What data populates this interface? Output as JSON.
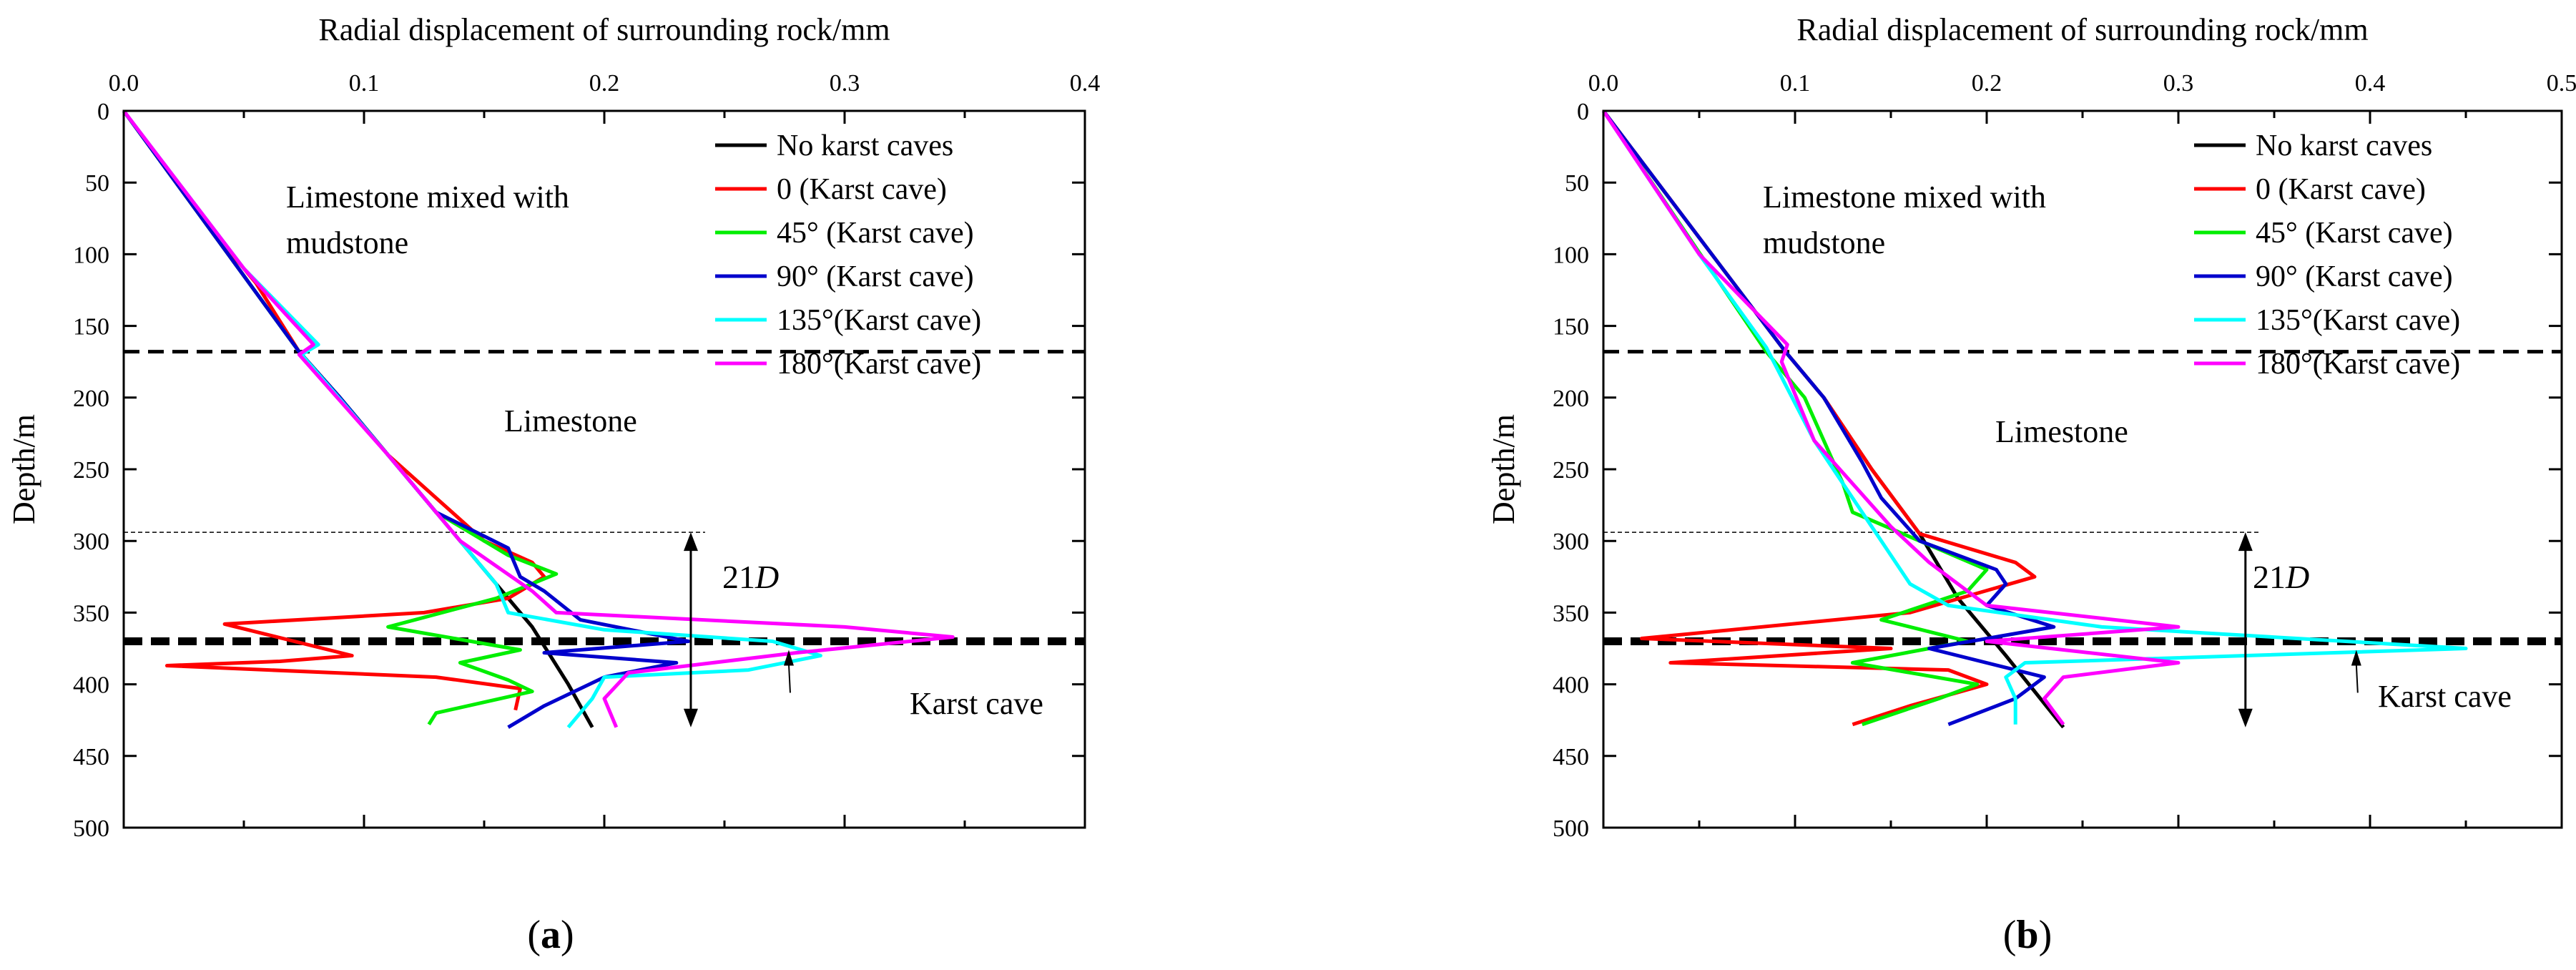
{
  "chart_data": [
    {
      "panel_label": "a",
      "type": "line",
      "xlabel": "Radial displacement of surrounding rock/mm",
      "ylabel": "Depth/m",
      "xlim": [
        0,
        0.4
      ],
      "ylim": [
        0,
        500
      ],
      "x_ticks": [
        "0.0",
        "0.1",
        "0.2",
        "0.3",
        "0.4"
      ],
      "y_ticks": [
        "0",
        "50",
        "100",
        "150",
        "200",
        "250",
        "300",
        "350",
        "400",
        "450",
        "500"
      ],
      "legend_position": "top-right",
      "annotations": {
        "layer_top": "Limestone mixed with",
        "layer_top_2": "mudstone",
        "layer_mid": "Limestone",
        "span_label": "21",
        "span_label_italic": "D",
        "cave_label": "Karst cave"
      },
      "boundary_depths": [
        168,
        370
      ],
      "reference_depth": 294,
      "span_depths": [
        294,
        430
      ],
      "series": [
        {
          "name": "No karst caves",
          "color": "#000000",
          "x": [
            0,
            0.073,
            0.09,
            0.11,
            0.13,
            0.15,
            0.17,
            0.185,
            0.195
          ],
          "y": [
            0,
            168,
            200,
            240,
            280,
            320,
            360,
            400,
            430
          ]
        },
        {
          "name": "0    (Karst cave)",
          "color": "#ff0000",
          "x": [
            0,
            0.035,
            0.055,
            0.073,
            0.09,
            0.11,
            0.13,
            0.15,
            0.17,
            0.175,
            0.16,
            0.125,
            0.042,
            0.095,
            0.065,
            0.018,
            0.13,
            0.165,
            0.163
          ],
          "y": [
            0,
            80,
            120,
            168,
            200,
            240,
            270,
            300,
            315,
            325,
            340,
            350,
            358,
            380,
            384,
            387,
            395,
            403,
            418
          ]
        },
        {
          "name": "45° (Karst cave)",
          "color": "#00ee00",
          "x": [
            0,
            0.073,
            0.09,
            0.11,
            0.13,
            0.16,
            0.18,
            0.155,
            0.11,
            0.165,
            0.14,
            0.16,
            0.17,
            0.13,
            0.127
          ],
          "y": [
            0,
            168,
            200,
            240,
            280,
            310,
            323,
            340,
            360,
            376,
            385,
            397,
            405,
            420,
            428
          ]
        },
        {
          "name": "90° (Karst cave)",
          "color": "#0000cc",
          "x": [
            0,
            0.073,
            0.09,
            0.11,
            0.13,
            0.16,
            0.165,
            0.175,
            0.19,
            0.235,
            0.175,
            0.23,
            0.2,
            0.175,
            0.16
          ],
          "y": [
            0,
            168,
            200,
            240,
            280,
            305,
            325,
            335,
            355,
            370,
            378,
            385,
            395,
            415,
            430
          ]
        },
        {
          "name": "135°(Karst cave)",
          "color": "#00ffff",
          "x": [
            0,
            0.05,
            0.081,
            0.074,
            0.11,
            0.14,
            0.155,
            0.16,
            0.2,
            0.27,
            0.29,
            0.26,
            0.2,
            0.195,
            0.185
          ],
          "y": [
            0,
            110,
            163,
            170,
            240,
            300,
            330,
            350,
            362,
            370,
            380,
            390,
            395,
            410,
            430
          ]
        },
        {
          "name": "180°(Karst cave)",
          "color": "#ff00ff",
          "x": [
            0,
            0.05,
            0.079,
            0.073,
            0.11,
            0.14,
            0.17,
            0.18,
            0.3,
            0.345,
            0.28,
            0.21,
            0.2,
            0.205
          ],
          "y": [
            0,
            110,
            163,
            170,
            240,
            300,
            335,
            350,
            360,
            367,
            378,
            392,
            410,
            430
          ]
        }
      ]
    },
    {
      "panel_label": "b",
      "type": "line",
      "xlabel": "Radial displacement of surrounding rock/mm",
      "ylabel": "Depth/m",
      "xlim": [
        0,
        0.5
      ],
      "ylim": [
        0,
        500
      ],
      "x_ticks": [
        "0.0",
        "0.1",
        "0.2",
        "0.3",
        "0.4",
        "0.5"
      ],
      "y_ticks": [
        "0",
        "50",
        "100",
        "150",
        "200",
        "250",
        "300",
        "350",
        "400",
        "450",
        "500"
      ],
      "legend_position": "top-right",
      "annotations": {
        "layer_top": "Limestone mixed with",
        "layer_top_2": "mudstone",
        "layer_mid": "Limestone",
        "span_label": "21",
        "span_label_italic": "D",
        "cave_label": "Karst cave"
      },
      "boundary_depths": [
        168,
        370
      ],
      "reference_depth": 294,
      "span_depths": [
        294,
        430
      ],
      "series": [
        {
          "name": "No karst caves",
          "color": "#000000",
          "x": [
            0,
            0.095,
            0.115,
            0.14,
            0.165,
            0.185,
            0.21,
            0.24
          ],
          "y": [
            0,
            168,
            200,
            250,
            295,
            340,
            380,
            430
          ]
        },
        {
          "name": "0    (Karst cave)",
          "color": "#ff0000",
          "x": [
            0,
            0.095,
            0.115,
            0.14,
            0.165,
            0.215,
            0.225,
            0.16,
            0.02,
            0.15,
            0.035,
            0.18,
            0.2,
            0.16,
            0.13
          ],
          "y": [
            0,
            168,
            200,
            250,
            295,
            315,
            325,
            350,
            368,
            375,
            385,
            390,
            400,
            415,
            428
          ]
        },
        {
          "name": "45° (Karst cave)",
          "color": "#00ee00",
          "x": [
            0,
            0.085,
            0.105,
            0.125,
            0.13,
            0.165,
            0.2,
            0.19,
            0.145,
            0.19,
            0.13,
            0.195,
            0.175,
            0.135
          ],
          "y": [
            0,
            168,
            200,
            260,
            280,
            300,
            320,
            335,
            355,
            370,
            385,
            400,
            410,
            428
          ]
        },
        {
          "name": "90° (Karst cave)",
          "color": "#0000cc",
          "x": [
            0,
            0.095,
            0.115,
            0.135,
            0.145,
            0.165,
            0.205,
            0.21,
            0.2,
            0.235,
            0.17,
            0.23,
            0.215,
            0.18
          ],
          "y": [
            0,
            168,
            200,
            245,
            270,
            300,
            320,
            330,
            345,
            360,
            375,
            395,
            410,
            428
          ]
        },
        {
          "name": "135°(Karst cave)",
          "color": "#00ffff",
          "x": [
            0,
            0.05,
            0.085,
            0.09,
            0.11,
            0.14,
            0.16,
            0.18,
            0.26,
            0.45,
            0.22,
            0.21,
            0.215,
            0.215
          ],
          "y": [
            0,
            100,
            165,
            178,
            230,
            290,
            330,
            345,
            360,
            375,
            385,
            395,
            410,
            428
          ]
        },
        {
          "name": "180°(Karst cave)",
          "color": "#ff00ff",
          "x": [
            0,
            0.05,
            0.096,
            0.093,
            0.11,
            0.15,
            0.17,
            0.2,
            0.3,
            0.2,
            0.3,
            0.24,
            0.23,
            0.24
          ],
          "y": [
            0,
            100,
            163,
            175,
            230,
            290,
            315,
            345,
            360,
            370,
            385,
            395,
            410,
            428
          ]
        }
      ]
    }
  ]
}
